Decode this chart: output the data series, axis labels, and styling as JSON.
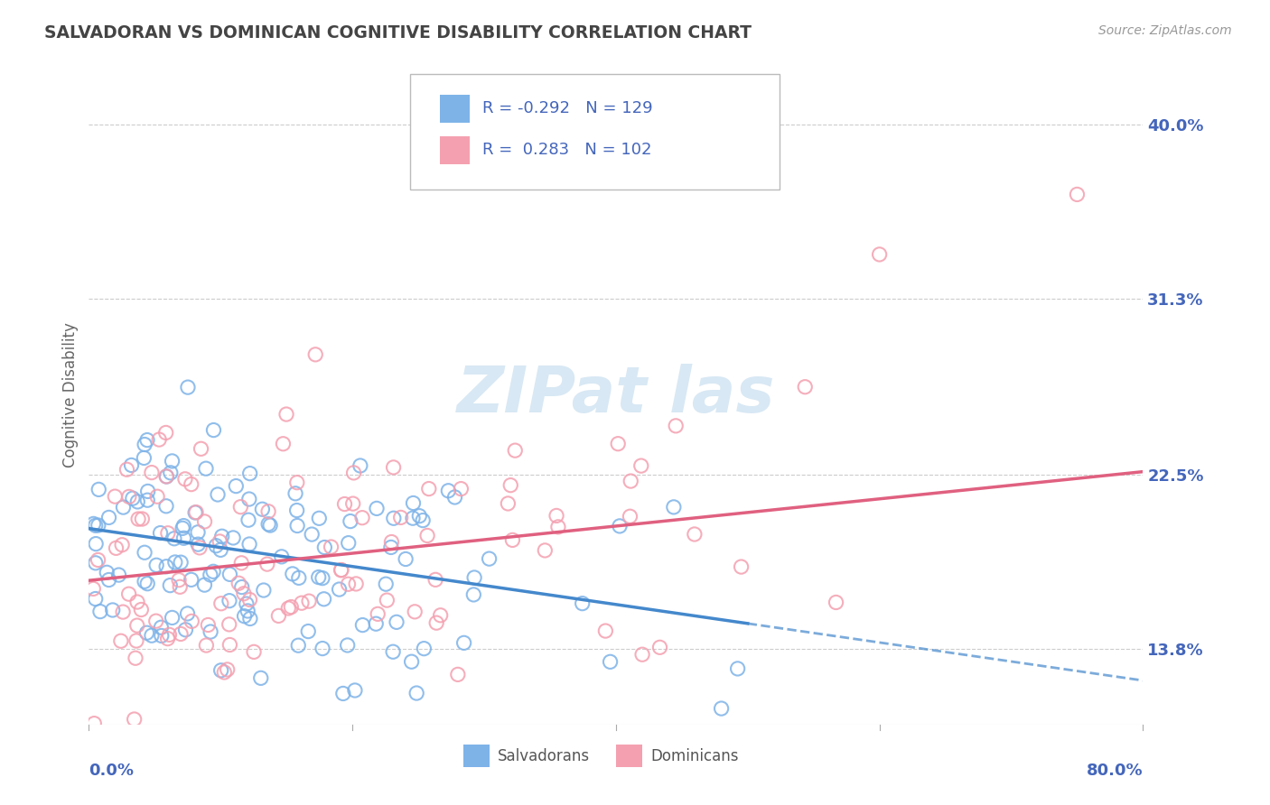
{
  "title": "SALVADORAN VS DOMINICAN COGNITIVE DISABILITY CORRELATION CHART",
  "source": "Source: ZipAtlas.com",
  "ylabel": "Cognitive Disability",
  "legend_salvadorans": "Salvadorans",
  "legend_dominicans": "Dominicans",
  "r_salvadoran": -0.292,
  "n_salvadoran": 129,
  "r_dominican": 0.283,
  "n_dominican": 102,
  "yticks": [
    13.8,
    22.5,
    31.3,
    40.0
  ],
  "ytick_labels": [
    "13.8%",
    "22.5%",
    "31.3%",
    "40.0%"
  ],
  "xmin": 0.0,
  "xmax": 80.0,
  "ymin": 10.0,
  "ymax": 43.0,
  "color_salvadoran": "#7EB3E8",
  "color_dominican": "#F4A0B0",
  "line_color_salvadoran": "#4488CC",
  "line_color_dominican": "#E06080",
  "background_color": "#FFFFFF",
  "title_color": "#444444",
  "axis_label_color": "#4466BB",
  "grid_color": "#CCCCCC",
  "watermark_color": "#D8E8F4"
}
